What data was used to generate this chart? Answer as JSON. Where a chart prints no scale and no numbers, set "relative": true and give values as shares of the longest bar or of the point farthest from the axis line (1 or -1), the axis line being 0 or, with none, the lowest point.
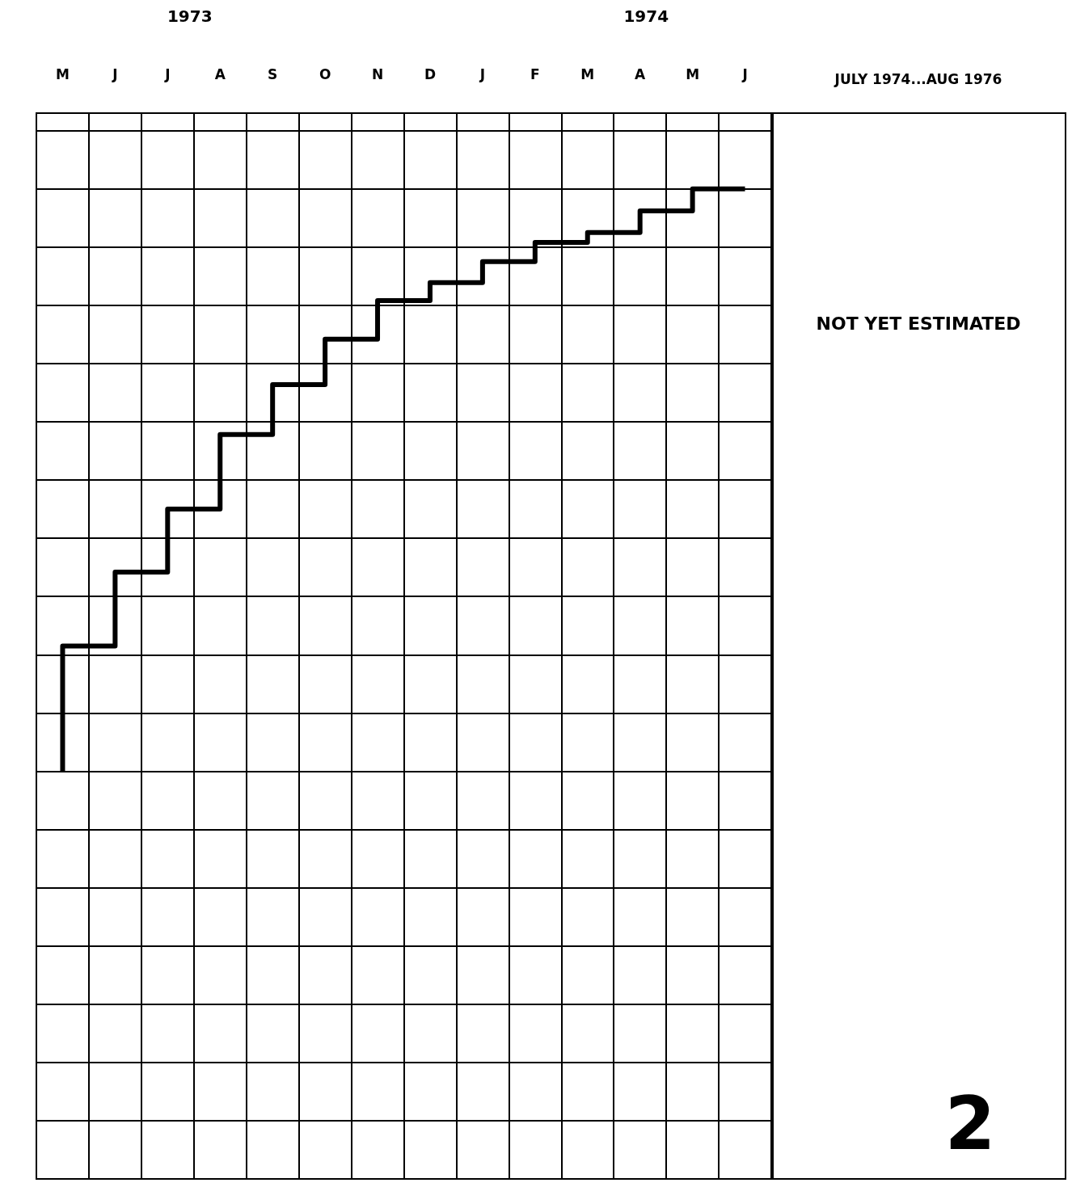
{
  "chart_data": {
    "type": "step",
    "relative": true,
    "categories": [
      "M",
      "J",
      "J",
      "A",
      "S",
      "O",
      "N",
      "D",
      "J",
      "F",
      "M",
      "A",
      "M",
      "J"
    ],
    "series": [
      {
        "color": "#000000",
        "values": [
          0,
          0.215,
          0.342,
          0.45,
          0.578,
          0.664,
          0.742,
          0.808,
          0.839,
          0.875,
          0.908,
          0.925,
          0.962,
          1
        ]
      }
    ],
    "annotations": [
      "1973",
      "1974",
      "JULY 1974...AUG 1976",
      "NOT YET ESTIMATED",
      "2"
    ],
    "grid": true,
    "marker": "none",
    "line_style": "solid"
  }
}
